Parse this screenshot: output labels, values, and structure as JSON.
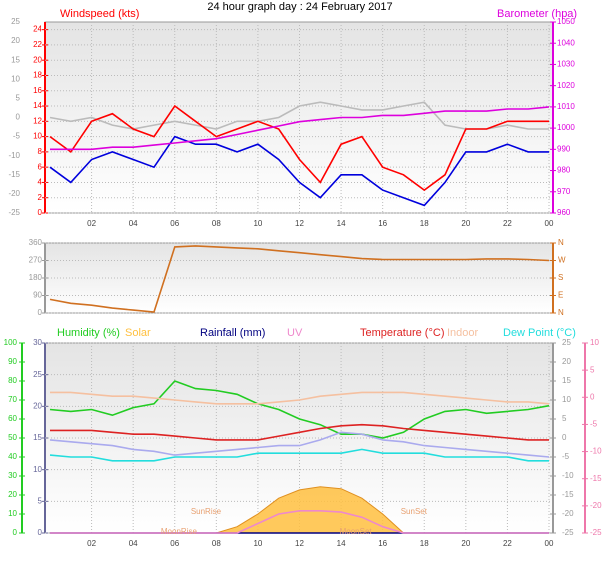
{
  "chart_data": [
    {
      "type": "line",
      "title": "24 hour graph day : 24 February 2017",
      "x": [
        0,
        1,
        2,
        3,
        4,
        5,
        6,
        7,
        8,
        9,
        10,
        11,
        12,
        13,
        14,
        15,
        16,
        17,
        18,
        19,
        20,
        21,
        22,
        23,
        24
      ],
      "xlim": [
        0,
        24
      ],
      "xticks": [
        {
          "value": 2,
          "label": "02"
        },
        {
          "value": 4,
          "label": "04"
        },
        {
          "value": 6,
          "label": "06"
        },
        {
          "value": 8,
          "label": "08"
        },
        10,
        12,
        14,
        16,
        18,
        20,
        22,
        {
          "value": 24,
          "label": "00"
        }
      ],
      "grid": true,
      "axes": {
        "outer": {
          "color": "#999999",
          "lim": [
            -25,
            25
          ],
          "ticks": [
            25,
            20,
            15,
            10,
            5,
            0,
            -5,
            -10,
            -15,
            -20,
            -25
          ]
        },
        "wind": {
          "label": "Windspeed (kts)",
          "color": "#ff0000",
          "lim": [
            0,
            25
          ],
          "ticks": [
            24,
            22,
            20,
            18,
            16,
            14,
            12,
            10,
            8,
            6,
            4,
            2,
            0
          ]
        },
        "baro": {
          "label": "Barometer (hpa)",
          "color": "#dd00dd",
          "lim": [
            960,
            1050
          ],
          "ticks": [
            1050,
            1040,
            1030,
            1020,
            1010,
            1000,
            990,
            980,
            970,
            960
          ]
        }
      },
      "series": [
        {
          "axis": "outer",
          "color": "#bbbbbb",
          "values": [
            0,
            -1,
            0,
            -2,
            -3,
            -2,
            -1,
            -2,
            -3,
            -1,
            -1,
            0,
            3,
            4,
            3,
            2,
            2,
            3,
            4,
            -2,
            -3,
            -3,
            -2,
            -3,
            -3
          ]
        },
        {
          "axis": "wind",
          "color": "#ff0000",
          "values": [
            10,
            8,
            12,
            13,
            11,
            10,
            14,
            12,
            10,
            11,
            12,
            11,
            7,
            4,
            9,
            10,
            6,
            5,
            3,
            5,
            11,
            11,
            12,
            12,
            12
          ]
        },
        {
          "axis": "wind",
          "color": "#0000dd",
          "values": [
            6,
            4,
            7,
            8,
            7,
            6,
            10,
            9,
            9,
            8,
            9,
            7,
            4,
            2,
            5,
            5,
            3,
            2,
            1,
            4,
            8,
            8,
            9,
            8,
            8
          ]
        },
        {
          "axis": "baro",
          "color": "#dd00dd",
          "values": [
            990,
            990,
            990,
            991,
            991,
            992,
            993,
            994,
            995,
            997,
            999,
            1001,
            1003,
            1004,
            1005,
            1005,
            1006,
            1006,
            1007,
            1008,
            1008,
            1008,
            1009,
            1009,
            1010
          ]
        }
      ]
    },
    {
      "type": "line",
      "x": [
        0,
        1,
        2,
        3,
        4,
        5,
        6,
        7,
        8,
        9,
        10,
        11,
        12,
        13,
        14,
        15,
        16,
        17,
        18,
        19,
        20,
        21,
        22,
        23,
        24
      ],
      "xlim": [
        0,
        24
      ],
      "grid": true,
      "axes": {
        "dir": {
          "color": "#999999",
          "lim": [
            0,
            360
          ],
          "ticks": [
            360,
            270,
            180,
            90,
            0
          ]
        },
        "compass": {
          "color": "#d07020",
          "lim": [
            0,
            360
          ],
          "ticks": [
            {
              "value": 360,
              "label": "N"
            },
            {
              "value": 270,
              "label": "W"
            },
            {
              "value": 180,
              "label": "S"
            },
            {
              "value": 90,
              "label": "E"
            },
            {
              "value": 0,
              "label": "N"
            }
          ]
        }
      },
      "series": [
        {
          "axis": "dir",
          "color": "#d07020",
          "values": [
            70,
            50,
            40,
            25,
            15,
            5,
            340,
            345,
            340,
            335,
            330,
            320,
            310,
            300,
            290,
            280,
            275,
            275,
            275,
            275,
            275,
            278,
            278,
            275,
            270
          ]
        }
      ]
    },
    {
      "type": "line",
      "x": [
        0,
        1,
        2,
        3,
        4,
        5,
        6,
        7,
        8,
        9,
        10,
        11,
        12,
        13,
        14,
        15,
        16,
        17,
        18,
        19,
        20,
        21,
        22,
        23,
        24
      ],
      "xlim": [
        0,
        24
      ],
      "xticks": [
        {
          "value": 2,
          "label": "02"
        },
        {
          "value": 4,
          "label": "04"
        },
        {
          "value": 6,
          "label": "06"
        },
        {
          "value": 8,
          "label": "08"
        },
        10,
        12,
        14,
        16,
        18,
        20,
        22,
        {
          "value": 24,
          "label": "00"
        }
      ],
      "grid": true,
      "axes": {
        "hum": {
          "color": "#22cc22",
          "lim": [
            0,
            100
          ],
          "ticks": [
            100,
            90,
            80,
            70,
            60,
            50,
            40,
            30,
            20,
            10,
            0
          ]
        },
        "rain": {
          "color": "#666699",
          "lim": [
            0,
            30
          ],
          "ticks": [
            30,
            25,
            20,
            15,
            10,
            5,
            0
          ]
        },
        "temp": {
          "color": "#999999",
          "lim": [
            -25,
            25
          ],
          "ticks": [
            25,
            20,
            15,
            10,
            5,
            0,
            -5,
            -10,
            -15,
            -20,
            -25
          ]
        },
        "indoor": {
          "color": "#ee77aa",
          "lim": [
            -25,
            10
          ],
          "ticks": [
            10,
            5,
            0,
            -5,
            -10,
            -15,
            -20,
            -25
          ]
        }
      },
      "series": [
        {
          "name": "Humidity (%)",
          "axis": "hum",
          "color": "#22cc22",
          "values": [
            65,
            64,
            65,
            62,
            66,
            68,
            80,
            76,
            75,
            73,
            68,
            65,
            60,
            57,
            52,
            52,
            50,
            53,
            60,
            64,
            65,
            63,
            64,
            65,
            67
          ]
        },
        {
          "name": "Solar",
          "axis": "rain",
          "kind": "area",
          "color": "#ffc040",
          "values": [
            0,
            0,
            0,
            0,
            0,
            0,
            0,
            0,
            0,
            1,
            3,
            5.5,
            6.8,
            7.3,
            7,
            5.5,
            3,
            0,
            0,
            0,
            0,
            0,
            0,
            0,
            0
          ]
        },
        {
          "name": "Rainfall (mm)",
          "axis": "rain",
          "color": "#000080",
          "values": [
            0,
            0,
            0,
            0,
            0,
            0,
            0,
            0,
            0,
            0,
            0,
            0,
            0,
            0,
            0,
            0,
            0,
            0,
            0,
            0,
            0,
            0,
            0,
            0,
            0
          ]
        },
        {
          "name": "UV",
          "axis": "rain",
          "color": "#ee88cc",
          "values": [
            0,
            0,
            0,
            0,
            0,
            0,
            0,
            0,
            0,
            0,
            1.5,
            3,
            3.5,
            3.5,
            3.3,
            2.5,
            1,
            0,
            0,
            0,
            0,
            0,
            0,
            0,
            0
          ]
        },
        {
          "name": "Temperature (°C)",
          "axis": "temp",
          "color": "#dd2222",
          "values": [
            2,
            2,
            2,
            1.5,
            1,
            1,
            0.5,
            0,
            -0.5,
            -0.5,
            -0.5,
            0.5,
            1.5,
            2.5,
            3.2,
            3.5,
            3.2,
            2.5,
            2,
            1.5,
            1,
            0.5,
            0,
            -0.5,
            -0.5
          ]
        },
        {
          "name": "Indoor",
          "axis": "temp",
          "color": "#f5c0a0",
          "values": [
            12,
            12,
            11.5,
            11,
            11,
            10.5,
            10,
            9.5,
            9,
            9,
            9,
            9.5,
            10,
            11,
            11.5,
            12,
            12,
            12,
            11.5,
            11,
            10.5,
            10,
            9.5,
            9.5,
            9
          ]
        },
        {
          "name": "Dew Point (°C)",
          "axis": "temp",
          "color": "#22dddd",
          "values": [
            -4.5,
            -5,
            -5,
            -6,
            -6,
            -6,
            -5,
            -5,
            -5,
            -5,
            -4,
            -4,
            -4,
            -4,
            -4,
            -3,
            -4,
            -4,
            -4,
            -5,
            -5,
            -5,
            -5,
            -6,
            -6
          ]
        },
        {
          "axis": "temp",
          "color": "#aaaaee",
          "values": [
            -0.5,
            -1,
            -1.5,
            -2,
            -3,
            -3.5,
            -4.5,
            -4,
            -3.5,
            -3,
            -2.5,
            -2,
            -2,
            -0.5,
            1.5,
            1,
            -0.5,
            -1,
            -2,
            -2.5,
            -3,
            -3.5,
            -4,
            -4.5,
            -5
          ]
        }
      ],
      "annotations": [
        {
          "text": "SunRise",
          "x": 7.5,
          "y": 3.3
        },
        {
          "text": "SunSet",
          "x": 17.5,
          "y": 3.3
        },
        {
          "text": "MoonRise",
          "x": 6.2,
          "y": 0.2
        },
        {
          "text": "MoonSet",
          "x": 14.7,
          "y": 0.2
        }
      ]
    }
  ]
}
